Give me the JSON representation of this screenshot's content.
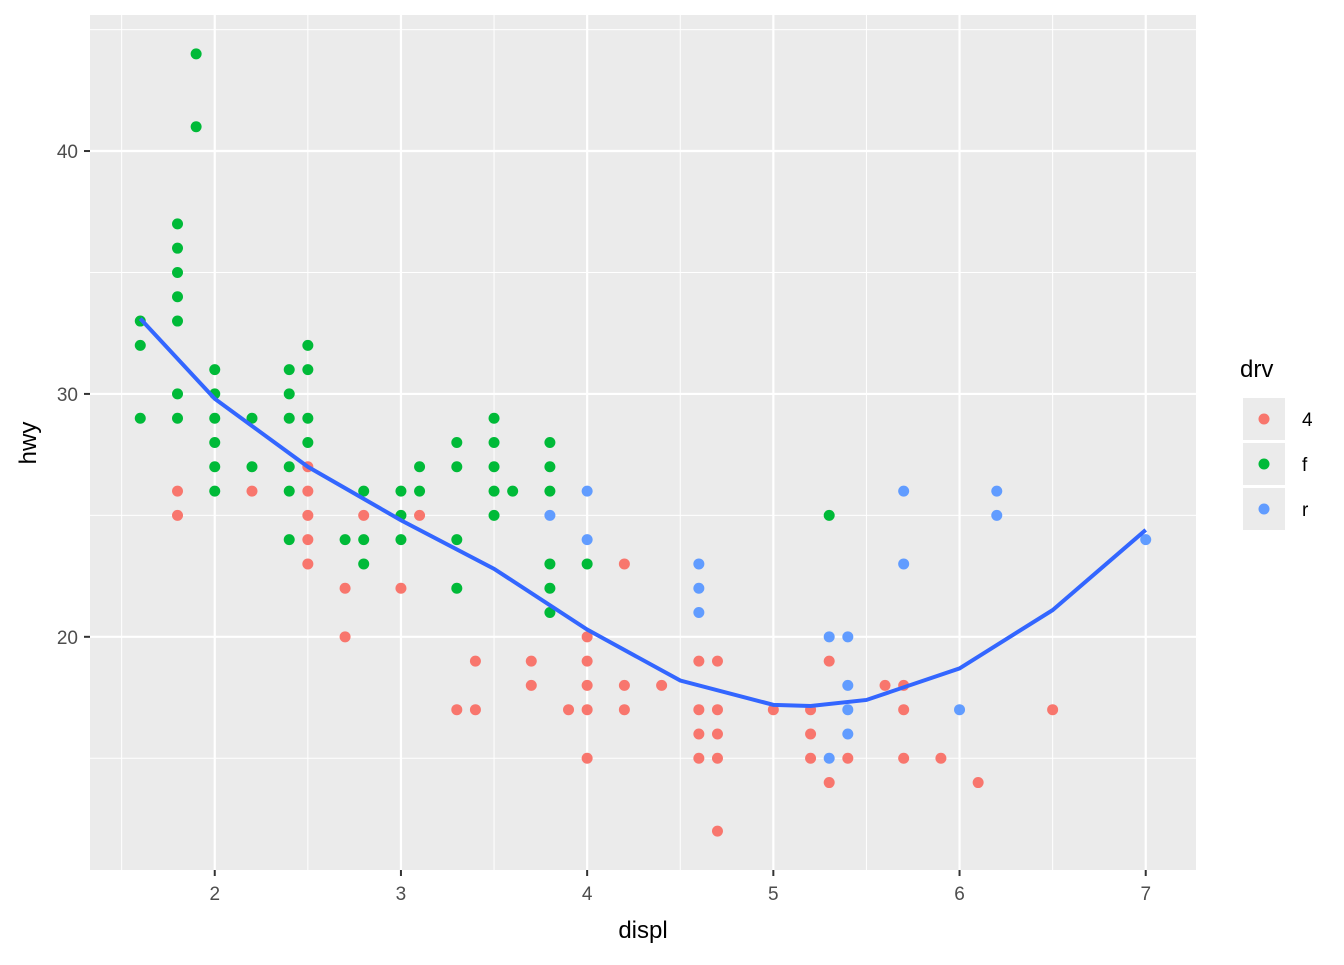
{
  "chart_data": {
    "type": "scatter",
    "x_label": "displ",
    "y_label": "hwy",
    "xlim": [
      1.33,
      7.27
    ],
    "ylim": [
      10.4,
      45.6
    ],
    "xticks": [
      2,
      3,
      4,
      5,
      6,
      7
    ],
    "yticks": [
      20,
      30,
      40
    ],
    "x_minor_grid": [
      1.5,
      2.5,
      3.5,
      4.5,
      5.5,
      6.5
    ],
    "y_minor_grid": [
      15,
      25,
      35,
      45
    ],
    "grid": true,
    "legend_title": "drv",
    "legend_position": "right",
    "series": [
      {
        "name": "4",
        "color": "#F8766D",
        "x": [
          1.8,
          1.8,
          2.2,
          2.5,
          2.5,
          2.5,
          2.5,
          2.5,
          2.7,
          2.7,
          2.8,
          3.0,
          3.1,
          3.3,
          3.4,
          3.4,
          3.7,
          3.7,
          3.9,
          4.0,
          4.0,
          4.0,
          4.0,
          4.0,
          4.2,
          4.2,
          4.2,
          4.4,
          4.6,
          4.6,
          4.6,
          4.6,
          4.7,
          4.7,
          4.7,
          4.7,
          4.7,
          5.0,
          5.2,
          5.2,
          5.2,
          5.3,
          5.3,
          5.4,
          5.6,
          5.7,
          5.7,
          5.7,
          5.9,
          6.1,
          6.5
        ],
        "values": [
          26,
          25,
          26,
          27,
          26,
          25,
          24,
          23,
          22,
          20,
          25,
          22,
          25,
          17,
          19,
          17,
          19,
          18,
          17,
          20,
          19,
          18,
          17,
          15,
          23,
          18,
          17,
          18,
          19,
          17,
          16,
          15,
          19,
          17,
          16,
          15,
          12,
          17,
          17,
          16,
          15,
          19,
          14,
          15,
          18,
          18,
          17,
          15,
          15,
          14,
          17
        ]
      },
      {
        "name": "f",
        "color": "#00BA38",
        "x": [
          1.6,
          1.6,
          1.6,
          1.8,
          1.8,
          1.8,
          1.8,
          1.8,
          1.8,
          1.8,
          1.9,
          1.9,
          2.0,
          2.0,
          2.0,
          2.0,
          2.0,
          2.0,
          2.2,
          2.2,
          2.4,
          2.4,
          2.4,
          2.4,
          2.4,
          2.4,
          2.5,
          2.5,
          2.5,
          2.5,
          2.7,
          2.8,
          2.8,
          2.8,
          3.0,
          3.0,
          3.0,
          3.1,
          3.1,
          3.3,
          3.3,
          3.3,
          3.3,
          3.5,
          3.5,
          3.5,
          3.5,
          3.5,
          3.6,
          3.8,
          3.8,
          3.8,
          3.8,
          3.8,
          3.8,
          4.0,
          5.3
        ],
        "values": [
          33,
          32,
          29,
          37,
          36,
          35,
          34,
          33,
          30,
          29,
          44,
          41,
          31,
          30,
          29,
          28,
          27,
          26,
          29,
          27,
          31,
          30,
          29,
          27,
          26,
          24,
          32,
          31,
          29,
          28,
          24,
          26,
          24,
          23,
          26,
          25,
          24,
          27,
          26,
          28,
          27,
          24,
          22,
          29,
          28,
          27,
          26,
          25,
          26,
          28,
          27,
          26,
          23,
          22,
          21,
          23,
          25
        ]
      },
      {
        "name": "r",
        "color": "#619CFF",
        "x": [
          3.8,
          4.0,
          4.0,
          4.6,
          4.6,
          4.6,
          5.3,
          5.3,
          5.4,
          5.4,
          5.4,
          5.4,
          5.7,
          5.7,
          6.0,
          6.2,
          6.2,
          7.0
        ],
        "values": [
          25,
          26,
          24,
          23,
          22,
          21,
          20,
          15,
          20,
          18,
          17,
          16,
          26,
          23,
          17,
          26,
          25,
          24
        ]
      }
    ],
    "smooth": {
      "color": "#3366FF",
      "x": [
        1.6,
        2.0,
        2.5,
        3.0,
        3.5,
        4.0,
        4.5,
        5.0,
        5.2,
        5.5,
        6.0,
        6.5,
        7.0
      ],
      "values": [
        33.1,
        29.8,
        27.0,
        24.8,
        22.8,
        20.3,
        18.2,
        17.2,
        17.15,
        17.4,
        18.7,
        21.1,
        24.4
      ]
    }
  }
}
